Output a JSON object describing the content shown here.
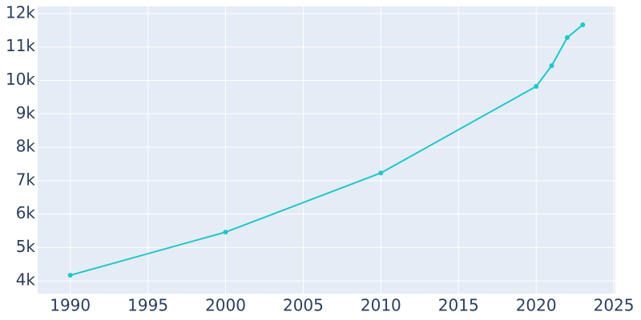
{
  "chart_data": {
    "type": "line",
    "x": [
      1990,
      2000,
      2010,
      2020,
      2021,
      2022,
      2023
    ],
    "series": [
      {
        "color": "#17cbcb",
        "values": [
          4170,
          5460,
          7230,
          9820,
          10440,
          11280,
          11665
        ]
      }
    ],
    "xlim": [
      1987.9,
      2025.1
    ],
    "xticks": [
      1990,
      1995,
      2000,
      2005,
      2010,
      2015,
      2020,
      2025
    ],
    "ylim": [
      3620,
      12215
    ],
    "yticks": [
      {
        "value": 4000,
        "label": "4k"
      },
      {
        "value": 5000,
        "label": "5k"
      },
      {
        "value": 6000,
        "label": "6k"
      },
      {
        "value": 7000,
        "label": "7k"
      },
      {
        "value": 8000,
        "label": "8k"
      },
      {
        "value": 9000,
        "label": "9k"
      },
      {
        "value": 10000,
        "label": "10k"
      },
      {
        "value": 11000,
        "label": "11k"
      },
      {
        "value": 12000,
        "label": "12k"
      }
    ],
    "grid": true
  }
}
